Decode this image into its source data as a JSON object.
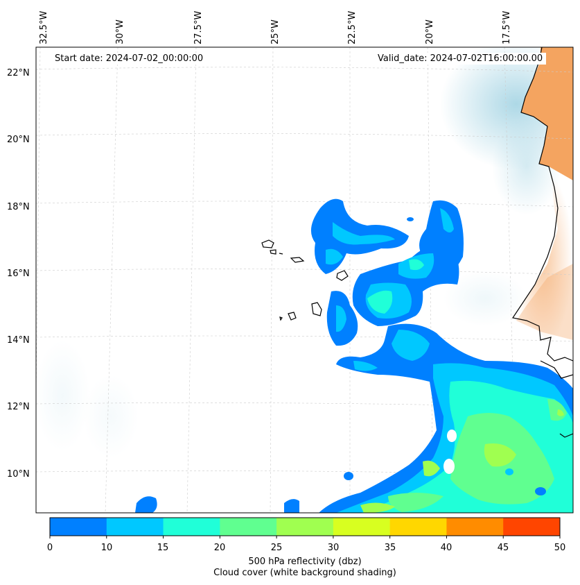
{
  "map": {
    "start_date": "Start date: 2024-07-02_00:00:00",
    "valid_date": "Valid_date: 2024-07-02T16:00:00.00",
    "lon_labels": [
      "32.5°W",
      "30°W",
      "27.5°W",
      "25°W",
      "22.5°W",
      "20°W",
      "17.5°W"
    ],
    "lat_labels": [
      "22°N",
      "20°N",
      "18°N",
      "16°N",
      "14°N",
      "12°N",
      "10°N"
    ],
    "gridlines": true
  },
  "colorbar": {
    "ticks": [
      "0",
      "10",
      "15",
      "20",
      "25",
      "30",
      "35",
      "40",
      "45",
      "50"
    ],
    "colors": [
      "#0080ff",
      "#00c8ff",
      "#20ffd8",
      "#60ff90",
      "#a0ff50",
      "#d8ff20",
      "#ffd700",
      "#ff8c00",
      "#ff4500"
    ],
    "label_line1": "500 hPa reflectivity (dbz)",
    "label_line2": "Cloud cover (white background shading)"
  },
  "colors": {
    "land": "#f4a460",
    "cloud_cover": "#add8e6",
    "coastline": "#000000"
  }
}
